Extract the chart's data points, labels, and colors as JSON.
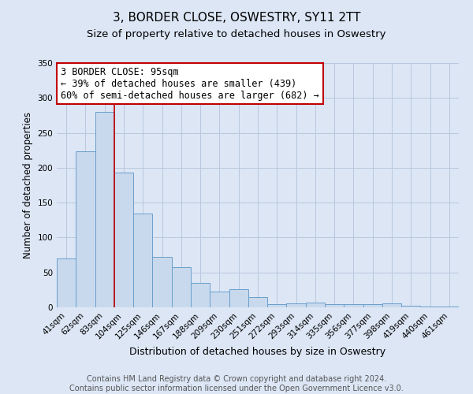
{
  "title": "3, BORDER CLOSE, OSWESTRY, SY11 2TT",
  "subtitle": "Size of property relative to detached houses in Oswestry",
  "xlabel": "Distribution of detached houses by size in Oswestry",
  "ylabel": "Number of detached properties",
  "bar_color": "#c9d9ed",
  "bar_edge_color": "#6a9fcb",
  "categories": [
    "41sqm",
    "62sqm",
    "83sqm",
    "104sqm",
    "125sqm",
    "146sqm",
    "167sqm",
    "188sqm",
    "209sqm",
    "230sqm",
    "251sqm",
    "272sqm",
    "293sqm",
    "314sqm",
    "335sqm",
    "356sqm",
    "377sqm",
    "398sqm",
    "419sqm",
    "440sqm",
    "461sqm"
  ],
  "values": [
    70,
    224,
    280,
    193,
    134,
    72,
    58,
    35,
    23,
    26,
    15,
    5,
    6,
    7,
    4,
    4,
    5,
    6,
    2,
    1,
    1
  ],
  "ylim": [
    0,
    350
  ],
  "yticks": [
    0,
    50,
    100,
    150,
    200,
    250,
    300,
    350
  ],
  "vline_color": "#c00000",
  "annotation_title": "3 BORDER CLOSE: 95sqm",
  "annotation_line1": "← 39% of detached houses are smaller (439)",
  "annotation_line2": "60% of semi-detached houses are larger (682) →",
  "annotation_box_color": "#ffffff",
  "annotation_box_edge": "#c00000",
  "figure_bg_color": "#dce6f5",
  "plot_bg_color": "#dce6f5",
  "grid_color": "#b8c8de",
  "footer_line1": "Contains HM Land Registry data © Crown copyright and database right 2024.",
  "footer_line2": "Contains public sector information licensed under the Open Government Licence v3.0.",
  "title_fontsize": 11,
  "subtitle_fontsize": 9.5,
  "xlabel_fontsize": 9,
  "ylabel_fontsize": 8.5,
  "tick_fontsize": 7.5,
  "annotation_fontsize": 8.5,
  "footer_fontsize": 7
}
